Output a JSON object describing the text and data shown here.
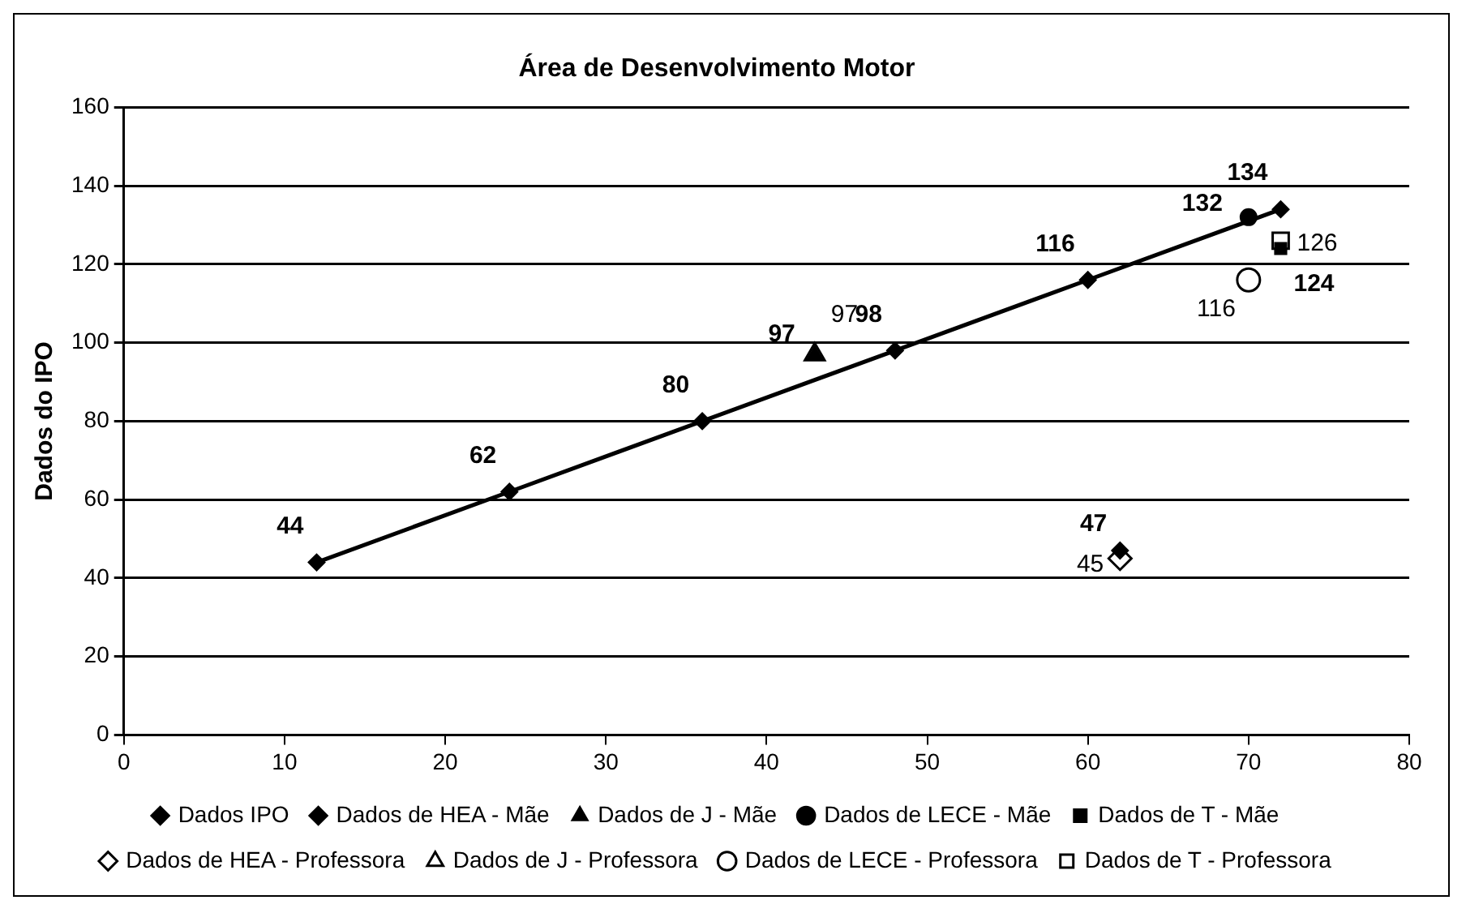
{
  "chart_data": {
    "type": "scatter",
    "title": "Área de Desenvolvimento Motor",
    "ylabel": "Dados do IPO",
    "xlim": [
      0,
      80
    ],
    "xticks": [
      0,
      10,
      20,
      30,
      40,
      50,
      60,
      70,
      80
    ],
    "ylim": [
      0,
      160
    ],
    "yticks": [
      0,
      20,
      40,
      60,
      80,
      100,
      120,
      140,
      160
    ],
    "grid": "y",
    "legend": "bottom",
    "data_labels": true,
    "series": [
      {
        "name": "Dados IPO",
        "type": "line",
        "marker": "diamond",
        "color": "#000000",
        "x": [
          12,
          24,
          36,
          48,
          60,
          72
        ],
        "values": [
          44,
          62,
          80,
          98,
          116,
          134
        ]
      },
      {
        "name": "Dados de HEA - Mãe",
        "marker": "diamond",
        "color": "#000000",
        "x": [
          62
        ],
        "values": [
          47
        ]
      },
      {
        "name": "Dados de J - Mãe",
        "marker": "triangle",
        "color": "#000000",
        "x": [
          43
        ],
        "values": [
          97
        ]
      },
      {
        "name": "Dados de LECE - Mãe",
        "marker": "circle",
        "color": "#000000",
        "x": [
          70
        ],
        "values": [
          132
        ]
      },
      {
        "name": "Dados de T - Mãe",
        "marker": "square",
        "color": "#000000",
        "x": [
          72
        ],
        "values": [
          124
        ]
      },
      {
        "name": "Dados de HEA - Professora",
        "marker": "diamond",
        "color": "#000000",
        "x": [
          62
        ],
        "values": [
          45
        ]
      },
      {
        "name": "Dados de J - Professora",
        "marker": "triangle",
        "color": "#000000",
        "x": [
          43
        ],
        "values": [
          97
        ]
      },
      {
        "name": "Dados de LECE - Professora",
        "marker": "circle",
        "color": "#000000",
        "x": [
          70
        ],
        "values": [
          116
        ]
      },
      {
        "name": "Dados de T - Professora",
        "marker": "square",
        "color": "#000000",
        "x": [
          72
        ],
        "values": [
          126
        ]
      }
    ]
  }
}
